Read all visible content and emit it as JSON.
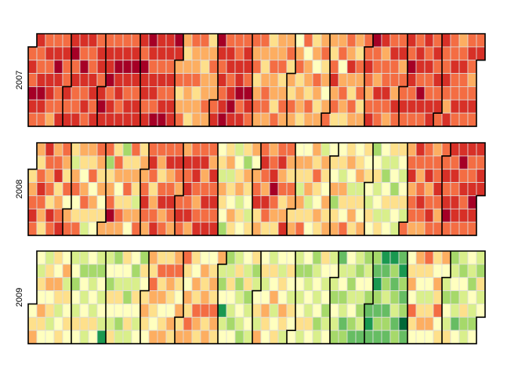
{
  "chart_data": [
    {
      "type": "calendar",
      "year": 2007,
      "vlim": [
        0,
        10
      ],
      "colors": [
        "#006837",
        "#1a9850",
        "#66bd63",
        "#a6d96a",
        "#d9ef8b",
        "#ffffbf",
        "#fee08b",
        "#fdae61",
        "#f46d43",
        "#d73027",
        "#a50026"
      ],
      "values": [
        8,
        9,
        8,
        10,
        9,
        8,
        9,
        8,
        8,
        9,
        10,
        9,
        8,
        8,
        9,
        8,
        9,
        9,
        8,
        7,
        8,
        9,
        10,
        9,
        8,
        8,
        9,
        8,
        9,
        8,
        8,
        9,
        8,
        9,
        9,
        10,
        8,
        9,
        8,
        8,
        9,
        9,
        8,
        10,
        9,
        8,
        9,
        8,
        9,
        8,
        8,
        9,
        9,
        8,
        9,
        8,
        9,
        9,
        8,
        9,
        10,
        9,
        8,
        9,
        9,
        10,
        8,
        9,
        9,
        8,
        9,
        10,
        9,
        9,
        8,
        9,
        8,
        9,
        10,
        9,
        8,
        9,
        9,
        8,
        9,
        10,
        9,
        8,
        9,
        9,
        9,
        8,
        10,
        9,
        9,
        8,
        9,
        10,
        9,
        8,
        9,
        9,
        8,
        10,
        9,
        9,
        8,
        9,
        8,
        9,
        10,
        9,
        9,
        8,
        9,
        8,
        9,
        9,
        10,
        9,
        7,
        8,
        6,
        7,
        8,
        7,
        6,
        7,
        8,
        7,
        7,
        6,
        8,
        7,
        7,
        8,
        6,
        7,
        7,
        8,
        7,
        6,
        7,
        7,
        8,
        7,
        6,
        7,
        8,
        7,
        7,
        8,
        9,
        10,
        9,
        8,
        9,
        8,
        9,
        10,
        8,
        9,
        9,
        8,
        9,
        10,
        9,
        8,
        8,
        9,
        9,
        10,
        8,
        9,
        8,
        9,
        9,
        8,
        10,
        9,
        8,
        8,
        7,
        8,
        6,
        7,
        8,
        7,
        8,
        7,
        6,
        7,
        8,
        8,
        7,
        6,
        7,
        8,
        7,
        7,
        6,
        8,
        7,
        7,
        8,
        6,
        7,
        8,
        7,
        7,
        8,
        6,
        7,
        6,
        8,
        7,
        5,
        7,
        8,
        6,
        7,
        7,
        6,
        8,
        5,
        7,
        7,
        6,
        8,
        7,
        6,
        7,
        5,
        8,
        7,
        6,
        7,
        7,
        8,
        6,
        7,
        5,
        7,
        8,
        7,
        6,
        8,
        9,
        7,
        8,
        6,
        7,
        8,
        5,
        7,
        8,
        7,
        6,
        8,
        7,
        9,
        7,
        6,
        8,
        7,
        7,
        6,
        8,
        7,
        8,
        6,
        7,
        8,
        8,
        9,
        8,
        7,
        8,
        9,
        10,
        8,
        8,
        7,
        9,
        8,
        8,
        9,
        7,
        8,
        8,
        9,
        8,
        7,
        8,
        9,
        8,
        8,
        7,
        9,
        8,
        8,
        9,
        7,
        8,
        8,
        9,
        8,
        9,
        8,
        10,
        9,
        8,
        9,
        8,
        8,
        9,
        9,
        8,
        10,
        9,
        8,
        9,
        8,
        9,
        8,
        8,
        9,
        9,
        8,
        9,
        8,
        9,
        8,
        9,
        8,
        9,
        8,
        8,
        9,
        8,
        7,
        9,
        8,
        8,
        9,
        8,
        8,
        9,
        8,
        7,
        8,
        9,
        8,
        8,
        9,
        8,
        8,
        9,
        8,
        7,
        8,
        9,
        8,
        8,
        9
      ]
    },
    {
      "type": "calendar",
      "year": 2008,
      "vlim": [
        0,
        10
      ],
      "colors": [
        "#006837",
        "#1a9850",
        "#66bd63",
        "#a6d96a",
        "#d9ef8b",
        "#ffffbf",
        "#fee08b",
        "#fdae61",
        "#f46d43",
        "#d73027",
        "#a50026"
      ],
      "values": [
        6,
        7,
        8,
        9,
        8,
        7,
        6,
        8,
        9,
        8,
        7,
        6,
        9,
        8,
        7,
        8,
        6,
        9,
        8,
        7,
        8,
        9,
        6,
        7,
        8,
        9,
        8,
        7,
        6,
        8,
        5,
        7,
        8,
        6,
        4,
        7,
        8,
        5,
        6,
        8,
        7,
        6,
        5,
        7,
        8,
        6,
        4,
        7,
        6,
        8,
        5,
        7,
        6,
        5,
        8,
        7,
        6,
        7,
        5,
        6,
        7,
        8,
        3,
        6,
        7,
        8,
        10,
        7,
        6,
        8,
        7,
        5,
        6,
        8,
        7,
        3,
        6,
        7,
        8,
        6,
        7,
        5,
        8,
        6,
        7,
        6,
        4,
        7,
        8,
        6,
        7,
        7,
        8,
        9,
        8,
        7,
        8,
        9,
        8,
        6,
        7,
        8,
        9,
        8,
        7,
        6,
        8,
        9,
        7,
        8,
        8,
        9,
        7,
        8,
        9,
        8,
        7,
        8,
        9,
        8,
        7,
        8,
        9,
        8,
        7,
        9,
        8,
        9,
        8,
        9,
        7,
        8,
        9,
        9,
        8,
        7,
        8,
        9,
        8,
        9,
        7,
        8,
        9,
        8,
        9,
        8,
        7,
        9,
        8,
        9,
        8,
        9,
        5,
        6,
        4,
        7,
        6,
        5,
        3,
        6,
        7,
        4,
        6,
        5,
        7,
        6,
        4,
        5,
        6,
        7,
        4,
        6,
        5,
        6,
        3,
        7,
        6,
        5,
        4,
        6,
        7,
        5,
        7,
        8,
        9,
        6,
        7,
        8,
        9,
        8,
        7,
        9,
        8,
        6,
        7,
        8,
        9,
        10,
        8,
        7,
        6,
        8,
        9,
        7,
        8,
        6,
        7,
        9,
        8,
        7,
        6,
        8,
        7,
        6,
        7,
        5,
        7,
        6,
        4,
        7,
        6,
        8,
        5,
        7,
        6,
        7,
        4,
        6,
        5,
        7,
        6,
        8,
        6,
        5,
        7,
        6,
        4,
        7,
        6,
        5,
        7,
        6,
        7,
        5,
        6,
        5,
        7,
        3,
        6,
        7,
        5,
        6,
        4,
        7,
        6,
        5,
        8,
        6,
        7,
        5,
        4,
        6,
        7,
        6,
        5,
        6,
        7,
        4,
        6,
        5,
        7,
        6,
        5,
        6,
        5,
        4,
        6,
        5,
        3,
        5,
        6,
        4,
        5,
        4,
        6,
        5,
        4,
        3,
        5,
        6,
        4,
        5,
        6,
        4,
        5,
        3,
        6,
        5,
        4,
        6,
        5,
        4,
        5,
        6,
        4,
        8,
        7,
        8,
        9,
        7,
        8,
        8,
        7,
        9,
        8,
        7,
        8,
        9,
        8,
        7,
        8,
        8,
        9,
        7,
        8,
        9,
        8,
        7,
        8,
        8,
        9,
        8,
        7,
        8,
        8,
        8,
        9,
        8,
        9,
        10,
        8,
        9,
        8,
        9,
        8,
        9,
        9,
        8,
        9,
        10,
        8,
        9,
        8,
        9,
        8,
        9,
        8,
        8,
        9,
        10,
        9,
        8,
        9,
        8,
        9,
        9
      ]
    },
    {
      "type": "calendar",
      "year": 2009,
      "vlim": [
        0,
        10
      ],
      "colors": [
        "#006837",
        "#1a9850",
        "#66bd63",
        "#a6d96a",
        "#d9ef8b",
        "#ffffbf",
        "#fee08b",
        "#fdae61",
        "#f46d43",
        "#d73027",
        "#a50026"
      ],
      "values": [
        5,
        6,
        7,
        5,
        4,
        6,
        5,
        7,
        6,
        5,
        4,
        6,
        7,
        5,
        6,
        4,
        5,
        6,
        5,
        7,
        6,
        4,
        5,
        6,
        5,
        7,
        4,
        6,
        5,
        6,
        5,
        4,
        5,
        3,
        5,
        4,
        6,
        5,
        4,
        3,
        5,
        4,
        5,
        6,
        4,
        5,
        3,
        4,
        5,
        4,
        6,
        5,
        4,
        3,
        5,
        4,
        5,
        4,
        1,
        4,
        5,
        3,
        6,
        5,
        4,
        6,
        3,
        5,
        4,
        6,
        5,
        3,
        4,
        6,
        5,
        4,
        3,
        5,
        6,
        4,
        5,
        3,
        4,
        6,
        5,
        4,
        5,
        3,
        6,
        5,
        6,
        7,
        6,
        5,
        7,
        6,
        8,
        7,
        6,
        5,
        7,
        6,
        8,
        6,
        7,
        5,
        6,
        7,
        6,
        8,
        7,
        6,
        5,
        7,
        6,
        7,
        8,
        6,
        5,
        7,
        6,
        7,
        8,
        6,
        5,
        7,
        6,
        8,
        7,
        6,
        5,
        7,
        6,
        8,
        7,
        6,
        5,
        7,
        6,
        7,
        8,
        6,
        7,
        5,
        6,
        7,
        6,
        8,
        7,
        6,
        7,
        4,
        3,
        5,
        1,
        4,
        5,
        3,
        4,
        6,
        5,
        4,
        3,
        5,
        4,
        6,
        3,
        4,
        5,
        4,
        3,
        5,
        4,
        6,
        3,
        4,
        5,
        4,
        6,
        3,
        4,
        5,
        6,
        4,
        7,
        5,
        6,
        4,
        5,
        7,
        6,
        5,
        4,
        6,
        5,
        7,
        4,
        5,
        6,
        5,
        4,
        6,
        5,
        7,
        6,
        4,
        5,
        6,
        5,
        4,
        6,
        5,
        5,
        4,
        3,
        5,
        4,
        5,
        6,
        4,
        5,
        3,
        4,
        5,
        4,
        6,
        5,
        3,
        4,
        5,
        4,
        5,
        3,
        4,
        6,
        5,
        4,
        5,
        3,
        4,
        5,
        4,
        5,
        4,
        3,
        5,
        4,
        3,
        2,
        4,
        5,
        3,
        4,
        2,
        3,
        5,
        4,
        3,
        4,
        5,
        3,
        2,
        4,
        3,
        5,
        4,
        3,
        4,
        2,
        3,
        4,
        5,
        3,
        2,
        1,
        2,
        3,
        2,
        1,
        3,
        2,
        3,
        2,
        1,
        2,
        3,
        4,
        2,
        3,
        2,
        1,
        3,
        2,
        3,
        4,
        2,
        3,
        2,
        1,
        3,
        2,
        3,
        0,
        2,
        5,
        6,
        7,
        5,
        8,
        6,
        5,
        7,
        6,
        5,
        4,
        6,
        7,
        5,
        8,
        6,
        5,
        4,
        6,
        7,
        5,
        6,
        5,
        7,
        6,
        8,
        5,
        6,
        7,
        5,
        4,
        3,
        5,
        4,
        6,
        3,
        4,
        5,
        3,
        4,
        2,
        5,
        4,
        3,
        5,
        4,
        6,
        3,
        4,
        5,
        4,
        3,
        5,
        4,
        3,
        5,
        4,
        3,
        6,
        4,
        5
      ]
    }
  ]
}
